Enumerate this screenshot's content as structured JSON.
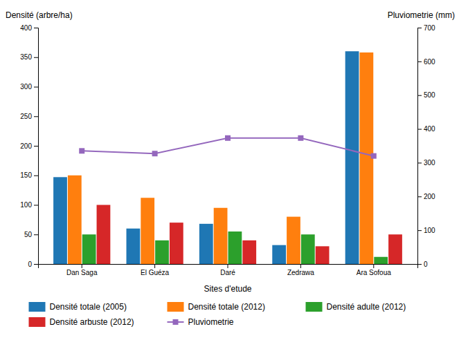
{
  "chart_data": {
    "type": "bar",
    "categories": [
      "Dan Saga",
      "El Guéza",
      "Daré",
      "Zedrawa",
      "Ara Sofoua"
    ],
    "series": [
      {
        "name": "Densité totale (2005)",
        "type": "bar",
        "values": [
          147,
          60,
          68,
          32,
          360
        ]
      },
      {
        "name": "Densité totale (2012)",
        "type": "bar",
        "values": [
          150,
          112,
          95,
          80,
          358
        ]
      },
      {
        "name": "Densité adulte (2012)",
        "type": "bar",
        "values": [
          50,
          40,
          55,
          50,
          12
        ]
      },
      {
        "name": "Densité arbuste (2012)",
        "type": "bar",
        "values": [
          100,
          70,
          40,
          30,
          50
        ]
      },
      {
        "name": "Pluviometrie",
        "type": "line",
        "axis": "y2",
        "marker": "square",
        "values": [
          335,
          327,
          373,
          373,
          320
        ]
      }
    ],
    "xlabel": "Sites d'etude",
    "ylabel": "Densité (arbre/ha)",
    "y2label": "Pluviometrie (mm)",
    "ylim": [
      0,
      400
    ],
    "yticks": [
      0,
      50,
      100,
      150,
      200,
      250,
      300,
      350,
      400
    ],
    "y2lim": [
      0,
      700
    ],
    "y2ticks": [
      0,
      100,
      200,
      300,
      400,
      500,
      600,
      700
    ],
    "grid": false,
    "legend": "bottom"
  }
}
